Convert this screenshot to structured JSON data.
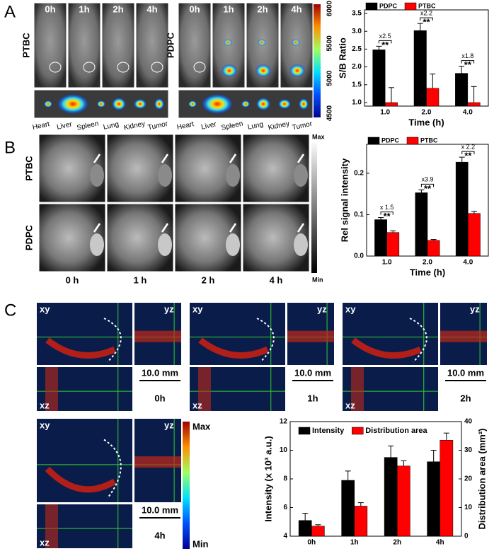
{
  "panels": {
    "A": {
      "letter": "A",
      "times": [
        "0h",
        "1h",
        "2h",
        "4h"
      ],
      "groups": [
        "PTBC",
        "PDPC"
      ],
      "organs": [
        "Heart",
        "Liver",
        "Spleen",
        "Lung",
        "Kidney",
        "Tumor"
      ],
      "colorbar_ticks": [
        6000,
        5500,
        5000,
        4500
      ]
    },
    "B": {
      "letter": "B",
      "groups": [
        "PTBC",
        "PDPC"
      ],
      "times": [
        "0 h",
        "1 h",
        "2 h",
        "4 h"
      ],
      "scale_max": "Max",
      "scale_min": "Min"
    },
    "C": {
      "letter": "C",
      "views": [
        "xy",
        "yz",
        "xz"
      ],
      "scale_bar": "10.0 mm",
      "times": [
        "0h",
        "1h",
        "2h",
        "4h"
      ],
      "scale_max": "Max",
      "scale_min": "Min"
    }
  },
  "chart_data": [
    {
      "type": "bar",
      "y_label": "S/B Ratio",
      "x_label": "Time (h)",
      "categories": [
        "1.0",
        "2.0",
        "4.0"
      ],
      "series": [
        {
          "name": "PDPC",
          "color": "#000000",
          "values": [
            2.48,
            3.02,
            1.82
          ],
          "errors": [
            0.1,
            0.2,
            0.2
          ]
        },
        {
          "name": "PTBC",
          "color": "#ff0000",
          "values": [
            1.0,
            1.4,
            1.0
          ],
          "errors": [
            0.42,
            0.4,
            0.45
          ]
        }
      ],
      "ylim": [
        0.9,
        3.6
      ],
      "yticks": [
        {
          "value": 1,
          "label": "1.0"
        },
        {
          "value": 1.5,
          "label": "1.5"
        },
        {
          "value": 2,
          "label": "2.0"
        },
        {
          "value": 2.5,
          "label": "2.5"
        },
        {
          "value": 3,
          "label": "3.0"
        },
        {
          "value": 3.5,
          "label": "3.5"
        }
      ],
      "annotations": [
        "x2.5",
        "x2.2",
        "x1.8"
      ],
      "significance": [
        "**",
        "**",
        "**"
      ],
      "legend": "top-left"
    },
    {
      "type": "bar",
      "y_label": "Rel signal intensity",
      "x_label": "Time (h)",
      "categories": [
        "1.0",
        "2.0",
        "4.0"
      ],
      "series": [
        {
          "name": "PDPC",
          "color": "#000000",
          "values": [
            0.088,
            0.153,
            0.227
          ],
          "errors": [
            0.005,
            0.007,
            0.012
          ]
        },
        {
          "name": "PTBC",
          "color": "#ff0000",
          "values": [
            0.057,
            0.038,
            0.103
          ],
          "errors": [
            0.004,
            0.002,
            0.005
          ]
        }
      ],
      "ylim": [
        0,
        0.27
      ],
      "yticks": [
        {
          "value": 0,
          "label": "0.0"
        },
        {
          "value": 0.1,
          "label": "0.1"
        },
        {
          "value": 0.2,
          "label": "0.2"
        }
      ],
      "annotations": [
        "x 1.5",
        "x3.9",
        "x 2.2"
      ],
      "significance": [
        "**",
        "**",
        "**"
      ],
      "legend": "top-left"
    },
    {
      "type": "bar",
      "y_label": "Intensity (x 10³ a.u.)",
      "y2_label": "Distribution area (mm²)",
      "categories": [
        "0h",
        "1h",
        "2h",
        "4h"
      ],
      "series": [
        {
          "name": "Intensity",
          "color": "#000000",
          "values": [
            5.1,
            7.9,
            9.5,
            9.2
          ],
          "errors": [
            0.5,
            0.65,
            0.8,
            0.8
          ]
        },
        {
          "name": "Distribution area",
          "color": "#ff0000",
          "axis": "y2",
          "values": [
            3.5,
            10.5,
            24.5,
            33.5
          ],
          "errors": [
            0.5,
            1.2,
            1.8,
            2.5
          ]
        }
      ],
      "ylim": [
        4,
        12
      ],
      "yticks": [
        4,
        6,
        8,
        10,
        12
      ],
      "y2lim": [
        0,
        40
      ],
      "y2ticks": [
        0,
        10,
        20,
        30,
        40
      ],
      "legend": "top-center"
    }
  ]
}
